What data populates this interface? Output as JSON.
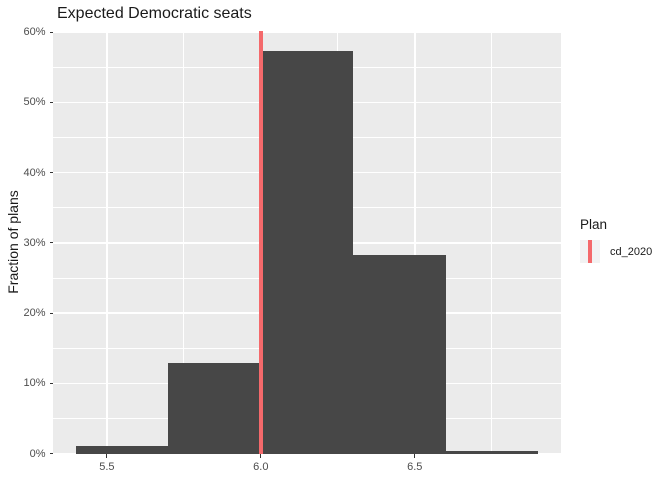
{
  "chart_data": {
    "type": "bar",
    "subtype": "histogram",
    "title": "Expected Democratic seats",
    "xlabel": "",
    "ylabel": "Fraction of plans",
    "bins": [
      {
        "x0": 5.4,
        "x1": 5.7,
        "fraction_pct": 1.1
      },
      {
        "x0": 5.7,
        "x1": 6.0,
        "fraction_pct": 12.9
      },
      {
        "x0": 6.0,
        "x1": 6.3,
        "fraction_pct": 57.3
      },
      {
        "x0": 6.3,
        "x1": 6.6,
        "fraction_pct": 28.2
      },
      {
        "x0": 6.6,
        "x1": 6.9,
        "fraction_pct": 0.4
      }
    ],
    "vline": {
      "x": 6.0,
      "series": "cd_2020"
    },
    "x_ticks": {
      "values": [
        5.5,
        6.0,
        6.5
      ],
      "labels": [
        "5.5",
        "6.0",
        "6.5"
      ]
    },
    "x_minor": [
      5.75,
      6.25,
      6.75
    ],
    "y_ticks": {
      "values": [
        0,
        10,
        20,
        30,
        40,
        50,
        60
      ],
      "labels": [
        "0%",
        "10%",
        "20%",
        "30%",
        "40%",
        "50%",
        "60%"
      ]
    },
    "y_minor": [
      5,
      15,
      25,
      35,
      45,
      55
    ],
    "xlim": [
      5.325,
      6.975
    ],
    "ylim_pct": [
      -0.05,
      60.15
    ],
    "grid": true,
    "legend_position": "right"
  },
  "legend": {
    "title": "Plan",
    "items": [
      {
        "label": "cd_2020",
        "key": "vline",
        "color": "#f4696b"
      }
    ]
  },
  "colors": {
    "background": "#ffffff",
    "panel_bg": "#ebebeb",
    "grid": "#ffffff",
    "bar_fill": "#474747",
    "vline": "#f4696b",
    "tick_mark": "#333333",
    "tick_label": "#4d4d4d",
    "text": "#1a1a1a",
    "legend_key_bg": "#f2f2f2"
  }
}
